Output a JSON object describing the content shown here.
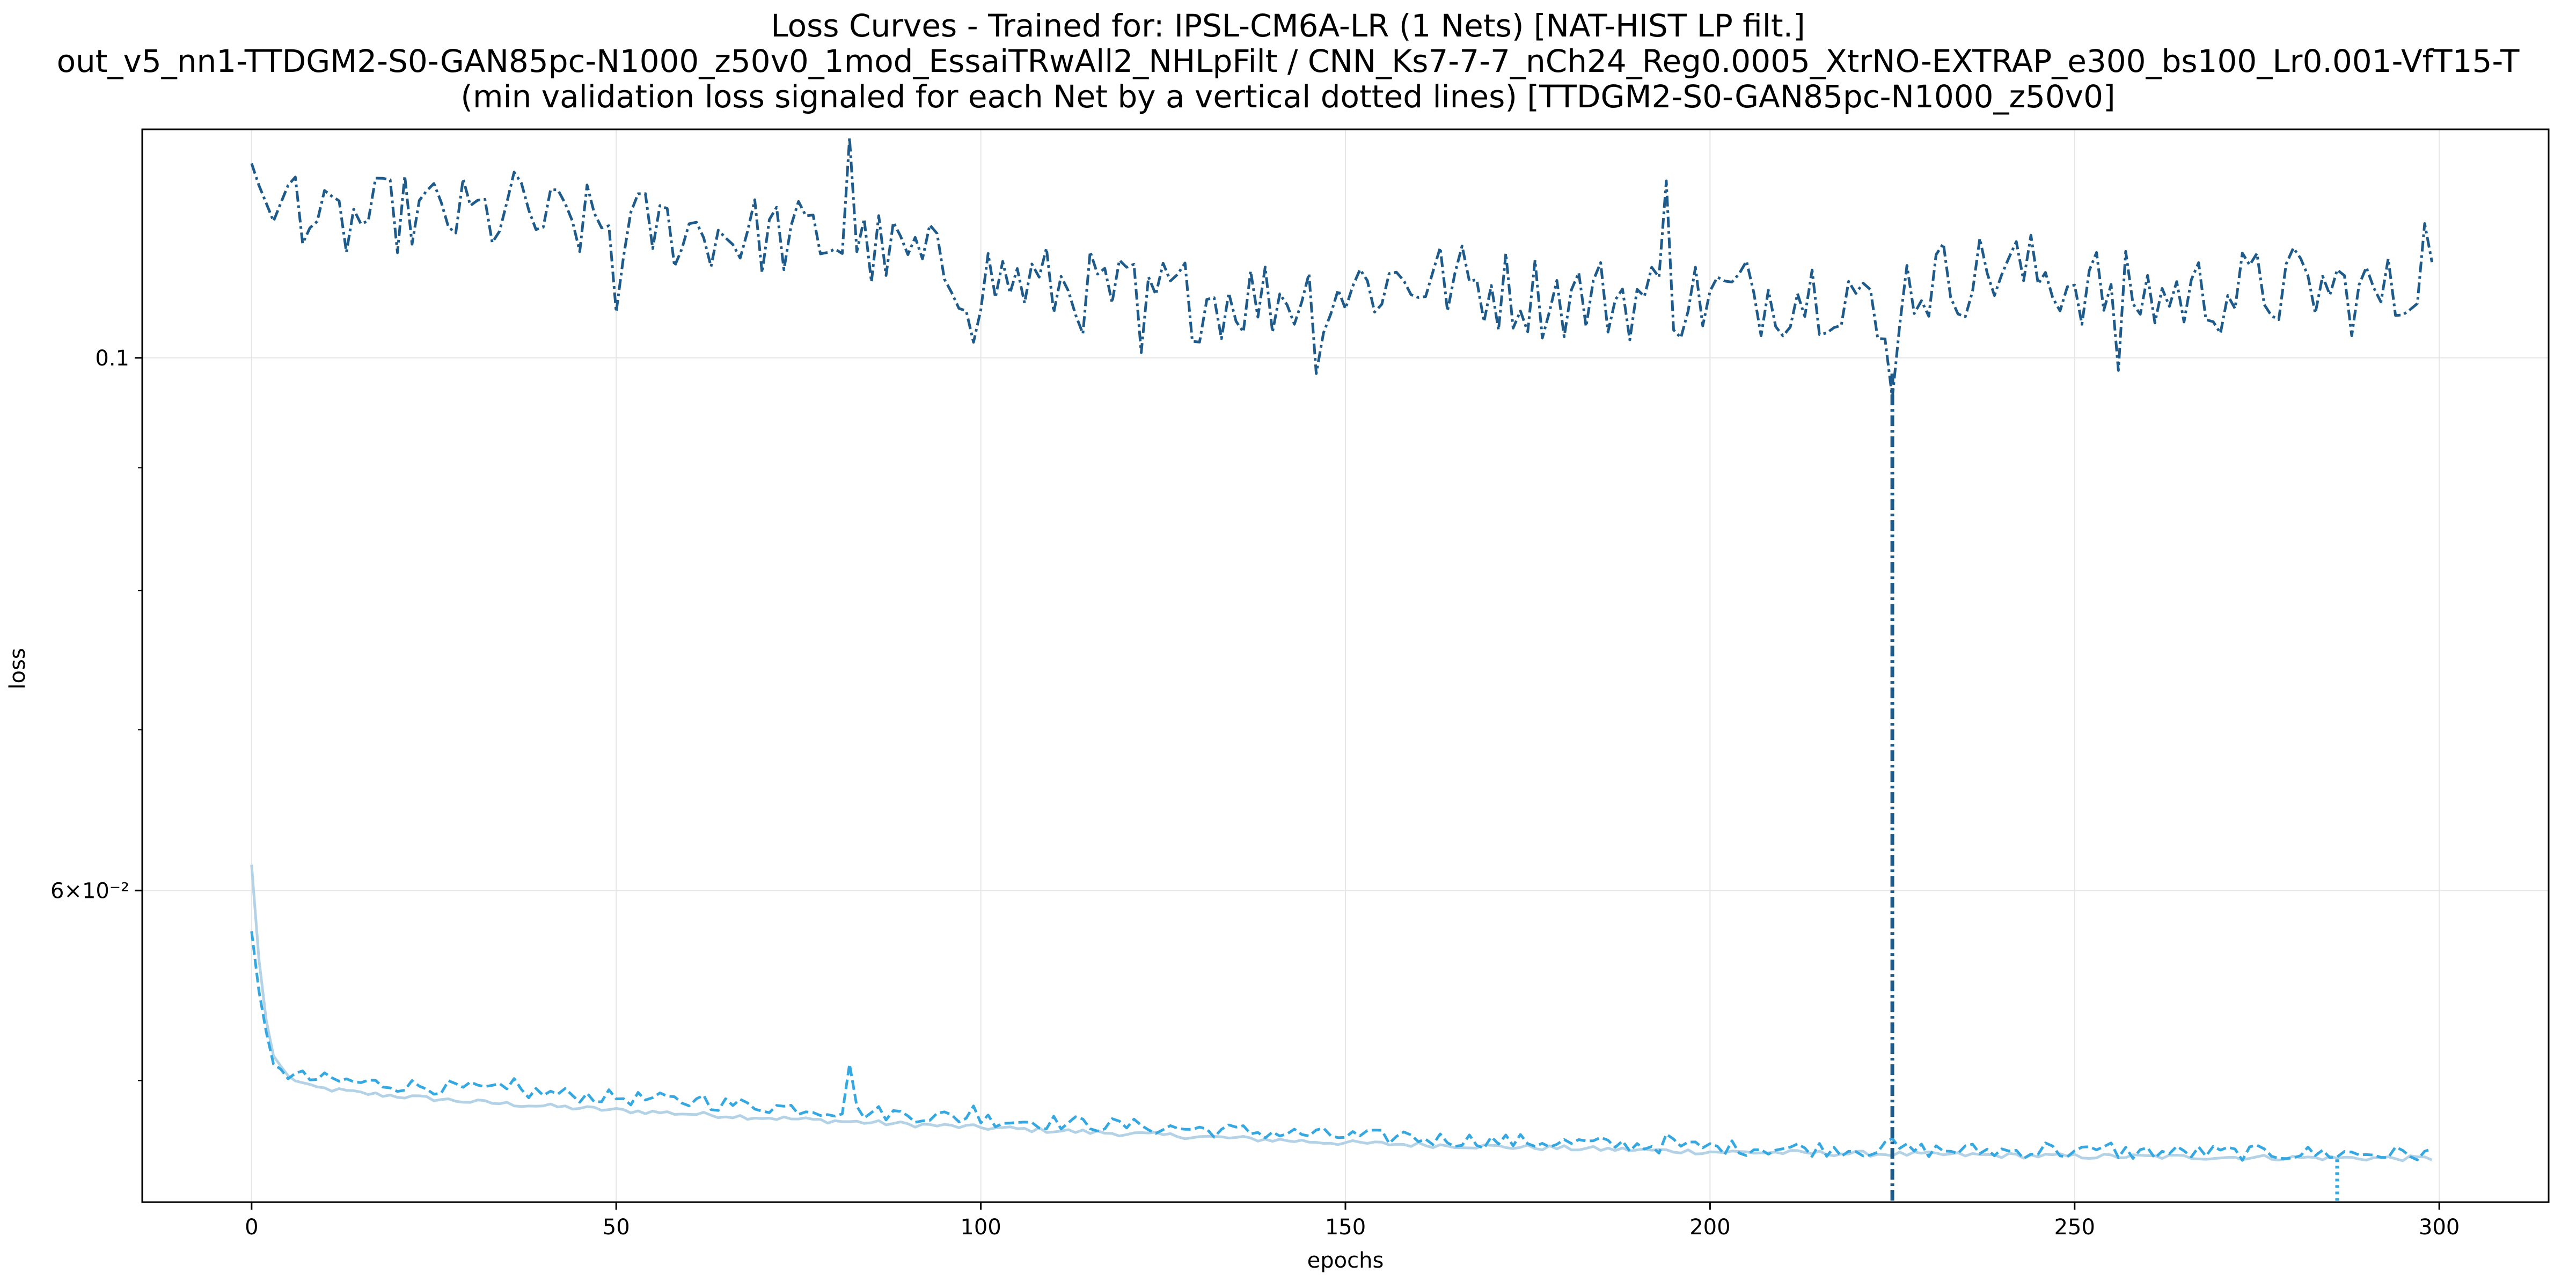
{
  "title": {
    "line1": "Loss Curves - Trained for: IPSL-CM6A-LR (1 Nets) [NAT-HIST LP filt.]",
    "line2": "out_v5_nn1-TTDGM2-S0-GAN85pc-N1000_z50v0_1mod_EssaiTRwAll2_NHLpFilt / CNN_Ks7-7-7_nCh24_Reg0.0005_XtrNO-EXTRAP_e300_bs100_Lr0.001-VfT15-T",
    "line3": "(min validation loss signaled for each Net by a vertical dotted lines) [TTDGM2-S0-GAN85pc-N1000_z50v0]"
  },
  "chart_data": {
    "type": "line",
    "title": "Loss Curves - Trained for: IPSL-CM6A-LR (1 Nets) [NAT-HIST LP filt.]",
    "xlabel": "epochs",
    "ylabel": "loss",
    "xlim": [
      -15,
      315
    ],
    "ylim": [
      0.0445,
      0.1245
    ],
    "yscale": "log",
    "grid": true,
    "xticks": [
      0,
      50,
      100,
      150,
      200,
      250,
      300
    ],
    "xtick_labels": [
      "0",
      "50",
      "100",
      "150",
      "200",
      "250",
      "300"
    ],
    "yticks": [
      0.1,
      0.06
    ],
    "ytick_labels": [
      "0.1",
      "6×10⁻²"
    ],
    "yticks_minor": [
      0.05,
      0.07,
      0.08,
      0.09
    ],
    "colors": {
      "train": "#b4d2e6",
      "validation": "#35a8e2",
      "test": "#1f5b8a"
    },
    "series": [
      {
        "key": "train",
        "style": "solid",
        "keypoints": [
          [
            0,
            0.0615
          ],
          [
            1,
            0.0562
          ],
          [
            2,
            0.053
          ],
          [
            3,
            0.0512
          ],
          [
            5,
            0.0502
          ],
          [
            8,
            0.0497
          ],
          [
            15,
            0.0494
          ],
          [
            30,
            0.049
          ],
          [
            50,
            0.0486
          ],
          [
            80,
            0.0481
          ],
          [
            100,
            0.0478
          ],
          [
            150,
            0.0471
          ],
          [
            200,
            0.0467
          ],
          [
            250,
            0.0465
          ],
          [
            299,
            0.0464
          ]
        ],
        "noise": 0.00012
      },
      {
        "key": "validation",
        "style": "dashed",
        "keypoints": [
          [
            0,
            0.0577
          ],
          [
            1,
            0.0545
          ],
          [
            2,
            0.0524
          ],
          [
            3,
            0.0508
          ],
          [
            5,
            0.0503
          ],
          [
            8,
            0.0501
          ],
          [
            15,
            0.0499
          ],
          [
            30,
            0.0496
          ],
          [
            50,
            0.0492
          ],
          [
            80,
            0.0486
          ],
          [
            100,
            0.0482
          ],
          [
            150,
            0.0474
          ],
          [
            200,
            0.0469
          ],
          [
            250,
            0.0467
          ],
          [
            299,
            0.0466
          ]
        ],
        "noise": 0.00035,
        "spikes": [
          [
            36,
            0.0501
          ],
          [
            62,
            0.0493
          ],
          [
            82,
            0.0508
          ],
          [
            99,
            0.0488
          ],
          [
            122,
            0.0479
          ],
          [
            158,
            0.0476
          ],
          [
            194,
            0.0475
          ],
          [
            225,
            0.0473
          ],
          [
            246,
            0.0471
          ],
          [
            255,
            0.0471
          ]
        ]
      },
      {
        "key": "test",
        "style": "dashdot",
        "keypoints": [
          [
            0,
            0.1205
          ],
          [
            1,
            0.118
          ],
          [
            3,
            0.114
          ],
          [
            5,
            0.118
          ],
          [
            10,
            0.113
          ],
          [
            20,
            0.115
          ],
          [
            40,
            0.114
          ],
          [
            60,
            0.113
          ],
          [
            80,
            0.112
          ],
          [
            100,
            0.108
          ],
          [
            120,
            0.106
          ],
          [
            140,
            0.106
          ],
          [
            160,
            0.108
          ],
          [
            180,
            0.106
          ],
          [
            200,
            0.106
          ],
          [
            220,
            0.107
          ],
          [
            225,
            0.0985
          ],
          [
            226,
            0.107
          ],
          [
            240,
            0.109
          ],
          [
            260,
            0.106
          ],
          [
            280,
            0.107
          ],
          [
            295,
            0.106
          ],
          [
            299,
            0.113
          ]
        ],
        "noise": 0.0045,
        "spikes": [
          [
            36,
            0.1195
          ],
          [
            50,
            0.1045
          ],
          [
            82,
            0.1235
          ],
          [
            99,
            0.1015
          ],
          [
            122,
            0.1005
          ],
          [
            146,
            0.0985
          ],
          [
            194,
            0.1185
          ],
          [
            256,
            0.0988
          ]
        ]
      }
    ],
    "min_markers": [
      {
        "key": "test",
        "x": 225,
        "style": "dashdot"
      },
      {
        "key": "validation",
        "x": 286,
        "style": "dotted"
      }
    ]
  }
}
